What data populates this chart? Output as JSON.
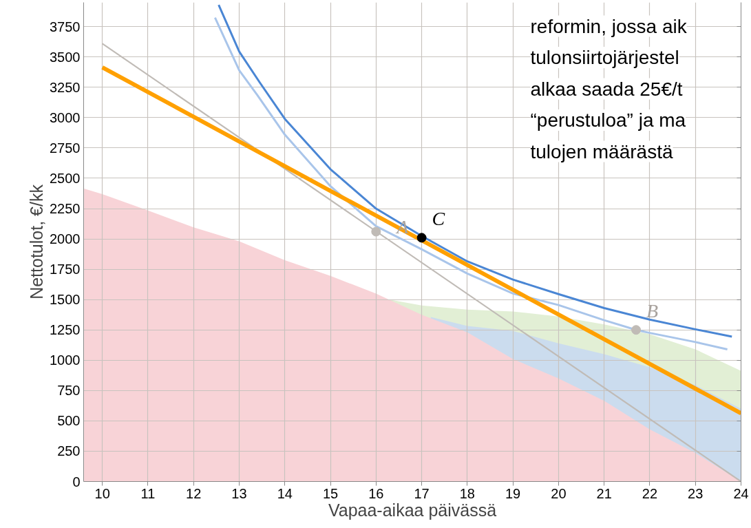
{
  "chart_data": {
    "type": "line",
    "xlabel": "Vapaa-aikaa päivässä",
    "ylabel": "Nettotulot, €/kk",
    "xlim": [
      9.59,
      24
    ],
    "ylim": [
      0,
      3950
    ],
    "xticks": [
      10,
      11,
      12,
      13,
      14,
      15,
      16,
      17,
      18,
      19,
      20,
      21,
      22,
      23,
      24
    ],
    "yticks": [
      0,
      250,
      500,
      750,
      1000,
      1250,
      1500,
      1750,
      2000,
      2250,
      2500,
      2750,
      3000,
      3250,
      3500,
      3750
    ],
    "grid": true,
    "marker": "none",
    "line_style": "solid",
    "series": [
      {
        "type": "area",
        "color": "#e2efd5",
        "x": [
          16.3,
          17,
          18,
          19,
          20,
          21,
          22,
          23,
          24
        ],
        "values": [
          1500,
          1452,
          1418,
          1402,
          1360,
          1295,
          1215,
          1090,
          913
        ]
      },
      {
        "type": "area",
        "color": "#cbdcee",
        "x": [
          17.2,
          18,
          19,
          20,
          21,
          22,
          23,
          24
        ],
        "values": [
          1356,
          1282,
          1242,
          1140,
          1050,
          942,
          794,
          600
        ]
      },
      {
        "type": "area",
        "color": "#f8d3d7",
        "x": [
          9.6,
          10,
          11,
          12,
          13,
          14,
          15,
          16,
          17,
          18,
          19,
          20,
          21,
          22,
          23,
          24
        ],
        "values": [
          2415,
          2370,
          2235,
          2095,
          1980,
          1825,
          1695,
          1550,
          1375,
          1230,
          1010,
          850,
          665,
          430,
          235,
          0
        ]
      },
      {
        "color": "#c0bbb6",
        "x": [
          10,
          24
        ],
        "values": [
          3610,
          0
        ]
      },
      {
        "color": "#a9c5ea",
        "x": [
          12.47,
          13,
          13.4,
          14,
          15,
          16,
          17,
          18,
          19,
          20,
          21,
          21.7,
          22,
          23,
          23.7
        ],
        "values": [
          3825,
          3390,
          3185,
          2860,
          2435,
          2105,
          1915,
          1715,
          1550,
          1455,
          1330,
          1250,
          1225,
          1150,
          1090
        ]
      },
      {
        "color": "#4a86d4",
        "x": [
          12.55,
          13,
          13.45,
          14,
          15,
          16,
          17,
          18,
          19,
          20,
          21,
          22,
          23,
          23.8
        ],
        "values": [
          3930,
          3545,
          3290,
          2990,
          2575,
          2250,
          2025,
          1815,
          1665,
          1545,
          1430,
          1335,
          1255,
          1195
        ]
      },
      {
        "color": "#ffa000",
        "x": [
          10,
          24
        ],
        "values": [
          3415,
          562
        ]
      },
      {
        "type": "scatter",
        "marker": "circle",
        "colors": [
          "#c0bbb6",
          "#000000",
          "#c0bbb6"
        ],
        "x": [
          16,
          17,
          21.7
        ],
        "values": [
          2060,
          2010,
          1250
        ]
      }
    ],
    "annotations": [
      {
        "text": "A",
        "x": 16,
        "y": 2060
      },
      {
        "text": "C",
        "x": 17,
        "y": 2010
      },
      {
        "text": "B",
        "x": 21.7,
        "y": 1250
      },
      "reformin, jossa aik",
      "tulonsiirtojärjestel",
      "alkaa saada 25€/t",
      "“perustuloa” ja ma",
      "tulojen määrästä"
    ]
  }
}
